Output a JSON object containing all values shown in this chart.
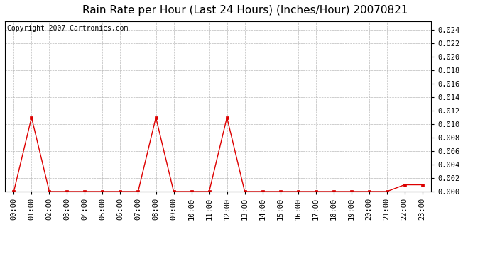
{
  "title": "Rain Rate per Hour (Last 24 Hours) (Inches/Hour) 20070821",
  "copyright_text": "Copyright 2007 Cartronics.com",
  "hours": [
    0,
    1,
    2,
    3,
    4,
    5,
    6,
    7,
    8,
    9,
    10,
    11,
    12,
    13,
    14,
    15,
    16,
    17,
    18,
    19,
    20,
    21,
    22,
    23
  ],
  "values": [
    0.0,
    0.011,
    0.0,
    0.0,
    0.0,
    0.0,
    0.0,
    0.0,
    0.011,
    0.0,
    0.0,
    0.0,
    0.011,
    0.0,
    0.0,
    0.0,
    0.0,
    0.0,
    0.0,
    0.0,
    0.0,
    0.0,
    0.001,
    0.001
  ],
  "line_color": "#dd0000",
  "marker_color": "#dd0000",
  "bg_color": "#ffffff",
  "plot_bg_color": "#ffffff",
  "grid_color": "#bbbbbb",
  "ylim": [
    0.0,
    0.0253
  ],
  "yticks": [
    0.0,
    0.002,
    0.004,
    0.006,
    0.008,
    0.01,
    0.012,
    0.014,
    0.016,
    0.018,
    0.02,
    0.022,
    0.024
  ],
  "title_fontsize": 11,
  "copyright_fontsize": 7,
  "tick_label_fontsize": 7.5
}
